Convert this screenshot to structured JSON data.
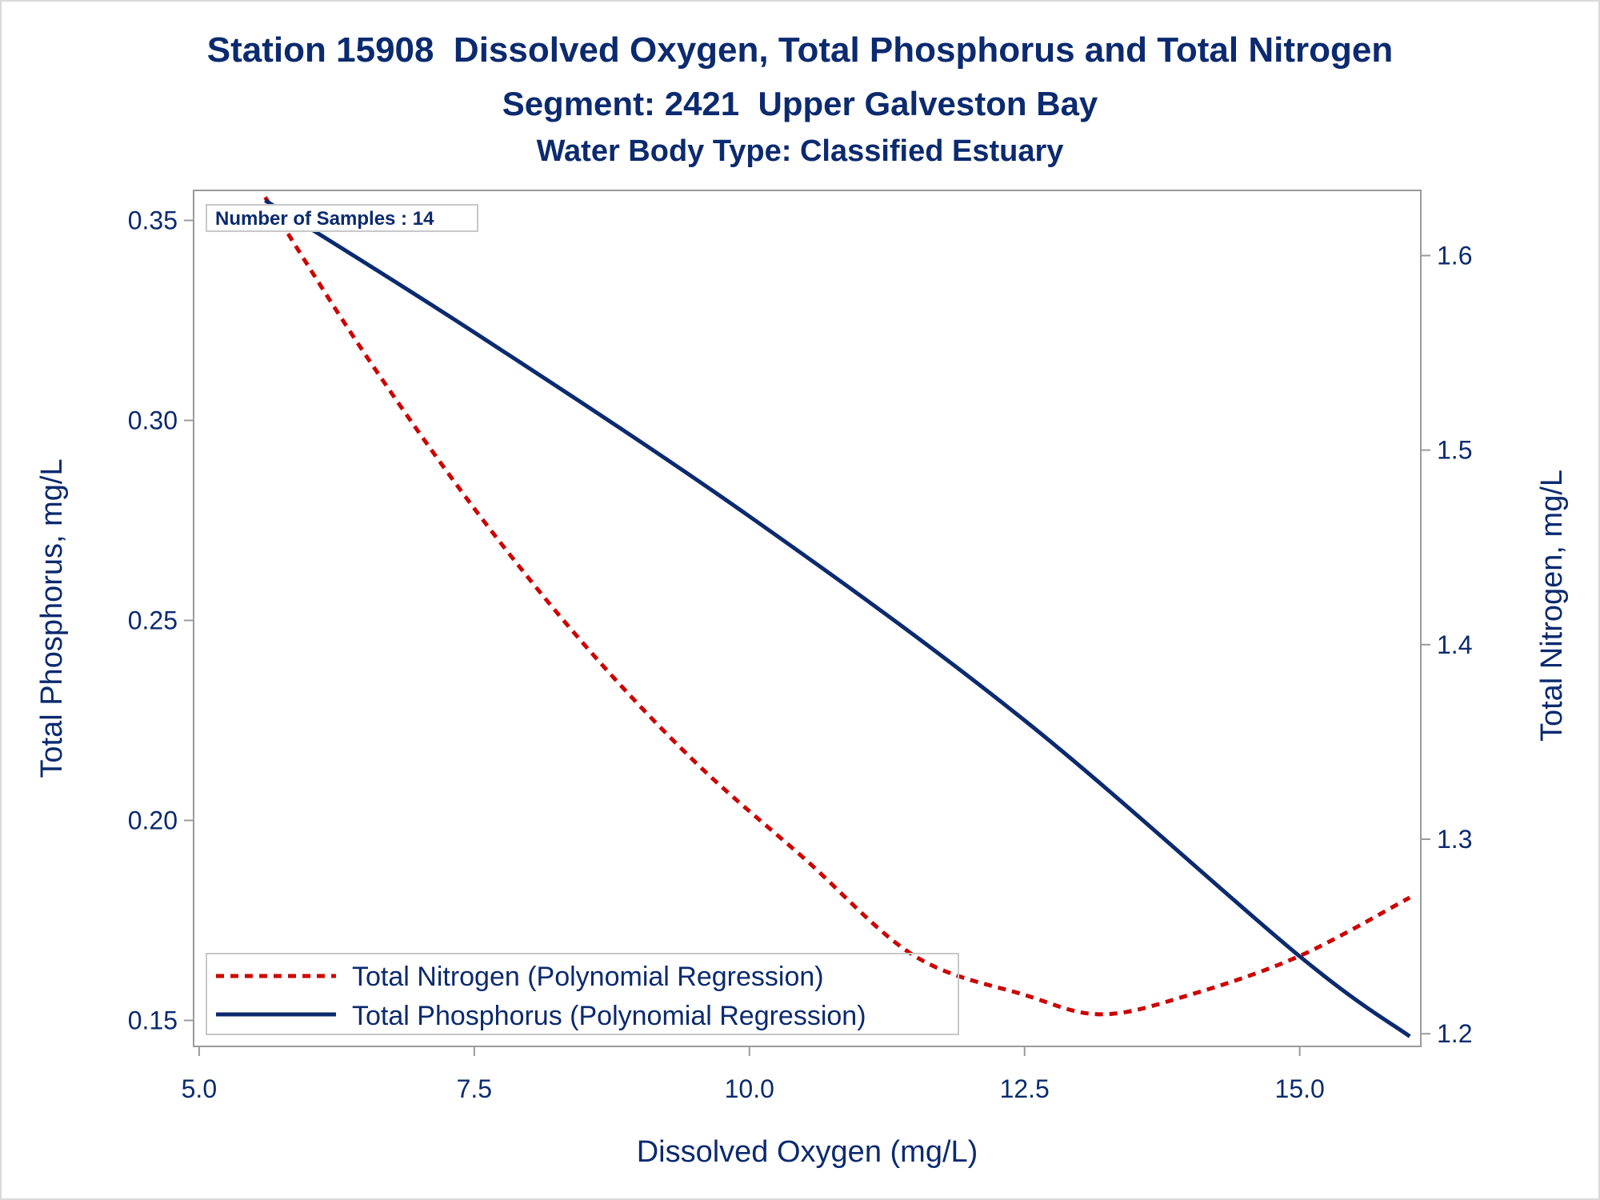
{
  "chart_data": {
    "type": "line",
    "title": "Station 15908  Dissolved Oxygen, Total Phosphorus and Total Nitrogen",
    "subtitle": "Segment: 2421  Upper Galveston Bay",
    "subtitle2": "Water Body Type: Classified Estuary",
    "xlabel": "Dissolved Oxygen (mg/L)",
    "ylabel_left": "Total Phosphorus, mg/L",
    "ylabel_right": "Total Nitrogen, mg/L",
    "xlim": [
      4.95,
      16.1
    ],
    "ylim_left": [
      0.1435,
      0.3575
    ],
    "ylim_right": [
      1.1935,
      1.6335
    ],
    "x_ticks": [
      "5.0",
      "7.5",
      "10.0",
      "12.5",
      "15.0"
    ],
    "y_left_ticks": [
      "0.15",
      "0.20",
      "0.25",
      "0.30",
      "0.35"
    ],
    "y_right_ticks": [
      "1.2",
      "1.3",
      "1.4",
      "1.5",
      "1.6"
    ],
    "annotation": "Number of Samples : 14",
    "legend_position": "bottom-left",
    "grid": false,
    "colors": {
      "text": "#0b2a6f",
      "nitrogen": "#cc0000",
      "phosphorus": "#0b2a6f",
      "axis": "#9a9a9a"
    },
    "series": [
      {
        "name": "Total Nitrogen (Polynomial Regression)",
        "axis": "right",
        "style": "dashed",
        "x": [
          5.6,
          6.5,
          7.5,
          8.5,
          9.5,
          10.5,
          11.5,
          12.5,
          13.2,
          14.0,
          15.0,
          16.0
        ],
        "y": [
          1.63,
          1.55,
          1.47,
          1.4,
          1.34,
          1.29,
          1.24,
          1.22,
          1.21,
          1.22,
          1.24,
          1.27
        ]
      },
      {
        "name": "Total Phosphorus (Polynomial Regression)",
        "axis": "left",
        "style": "solid",
        "x": [
          5.6,
          7.5,
          10.0,
          12.5,
          15.0,
          16.0
        ],
        "y": [
          0.355,
          0.322,
          0.276,
          0.225,
          0.166,
          0.146
        ]
      }
    ]
  }
}
